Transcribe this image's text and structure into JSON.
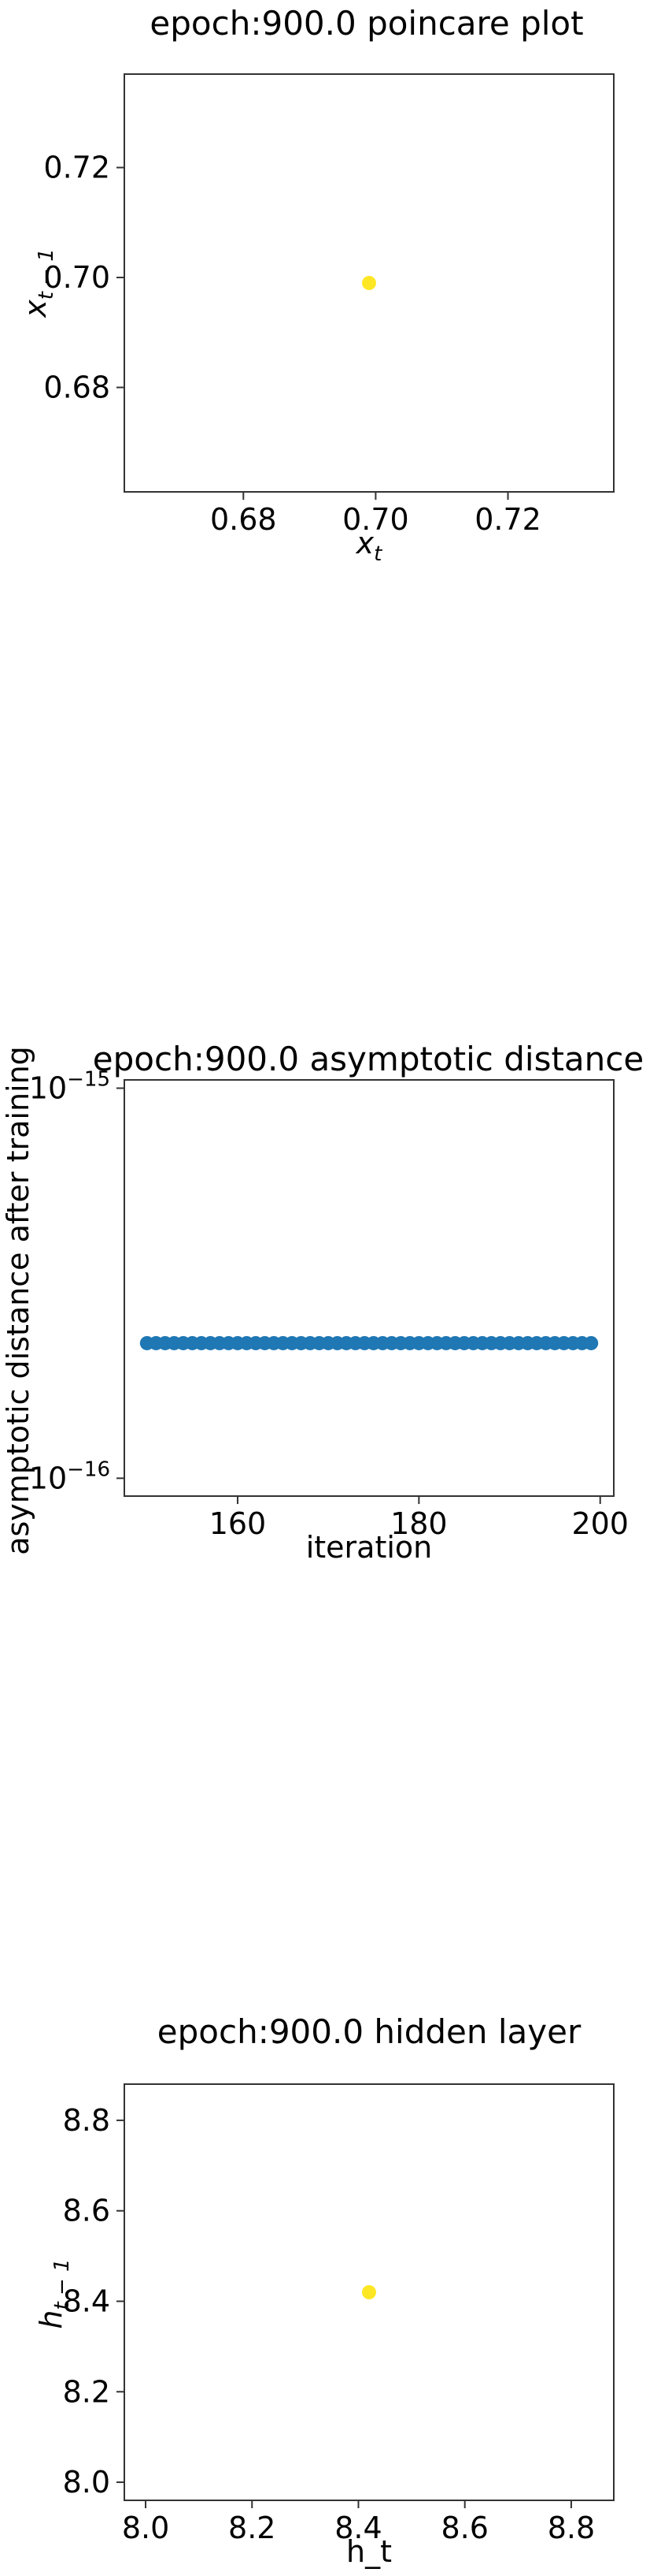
{
  "chart_data": [
    {
      "type": "scatter",
      "title": "epoch:900.0 poincare plot",
      "xlabel_base": "x",
      "xlabel_sub": "t",
      "ylabel_base": "x",
      "ylabel_sub": "t − 1",
      "xlim": [
        0.662,
        0.736
      ],
      "ylim": [
        0.661,
        0.737
      ],
      "xticks": [
        0.68,
        0.7,
        0.72
      ],
      "yticks": [
        0.68,
        0.7,
        0.72
      ],
      "xtick_labels": [
        "0.68",
        "0.70",
        "0.72"
      ],
      "ytick_labels": [
        "0.68",
        "0.70",
        "0.72"
      ],
      "points": [
        {
          "x": 0.699,
          "y": 0.699
        }
      ],
      "point_color": "#fde725"
    },
    {
      "type": "scatter",
      "title": "epoch:900.0 asymptotic distance",
      "xlabel": "iteration",
      "ylabel": "asymptotic distance after training",
      "xlim": [
        147.5,
        201.5
      ],
      "ylim": [
        9e-17,
        1.05e-15
      ],
      "yscale": "log",
      "xticks": [
        160,
        180,
        200
      ],
      "xtick_labels": [
        "160",
        "180",
        "200"
      ],
      "yticks": [
        1e-16,
        1e-15
      ],
      "ytick_labels": [
        {
          "base": "10",
          "exp": "−16"
        },
        {
          "base": "10",
          "exp": "−15"
        }
      ],
      "x_start": 150,
      "x_end": 199,
      "y_value": 2.22e-16,
      "point_color": "#1f77b4"
    },
    {
      "type": "scatter",
      "title": "epoch:900.0 hidden layer",
      "xlabel": "h_t",
      "ylabel_base": "h",
      "ylabel_sub": "t − 1",
      "xlim": [
        7.96,
        8.88
      ],
      "ylim": [
        7.96,
        8.88
      ],
      "xticks": [
        8.0,
        8.2,
        8.4,
        8.6,
        8.8
      ],
      "yticks": [
        8.0,
        8.2,
        8.4,
        8.6,
        8.8
      ],
      "xtick_labels": [
        "8.0",
        "8.2",
        "8.4",
        "8.6",
        "8.8"
      ],
      "ytick_labels": [
        "8.0",
        "8.2",
        "8.4",
        "8.6",
        "8.8"
      ],
      "points": [
        {
          "x": 8.42,
          "y": 8.42
        }
      ],
      "point_color": "#fde725"
    }
  ]
}
